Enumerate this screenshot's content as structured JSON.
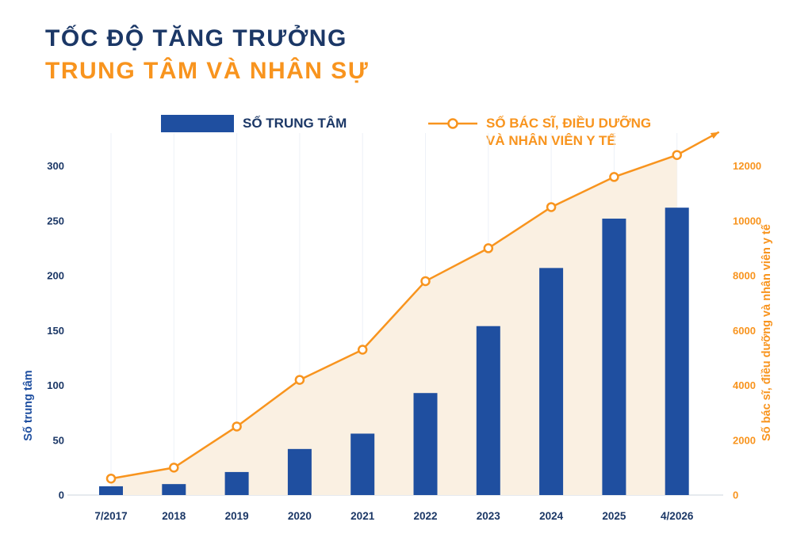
{
  "header": {
    "title_line1": "TỐC ĐỘ TĂNG TRƯỞNG",
    "title_line2": "TRUNG TÂM VÀ NHÂN SỰ"
  },
  "legend": {
    "bars_label": "SỐ TRUNG TÂM",
    "line_label_line1": "SỐ BÁC SĨ, ĐIỀU DƯỠNG",
    "line_label_line2": "VÀ NHÂN VIÊN Y TẾ"
  },
  "chart_data": {
    "type": "bar",
    "subtype": "combo-bar-line-dual-axis",
    "title": "Tốc độ tăng trưởng trung tâm và nhân sự",
    "categories": [
      "7/2017",
      "2018",
      "2019",
      "2020",
      "2021",
      "2022",
      "2023",
      "2024",
      "2025",
      "4/2026"
    ],
    "series": [
      {
        "name": "Số trung tâm",
        "type": "bar",
        "axis": "left",
        "values": [
          8,
          10,
          21,
          42,
          56,
          93,
          154,
          207,
          252,
          262
        ]
      },
      {
        "name": "Số bác sĩ, điều dưỡng và nhân viên y tế",
        "type": "line",
        "axis": "right",
        "area_fill": true,
        "values": [
          600,
          1000,
          2500,
          4200,
          5300,
          7800,
          9000,
          10500,
          11600,
          12400
        ]
      }
    ],
    "left_axis": {
      "title": "Số trung tâm",
      "ticks": [
        0,
        50,
        100,
        150,
        200,
        250,
        300
      ],
      "max": 330
    },
    "right_axis": {
      "title": "Số bác sĩ, điều dưỡng và nhân viên y tế",
      "ticks": [
        0,
        2000,
        4000,
        6000,
        8000,
        10000,
        12000
      ],
      "max": 13200
    },
    "legend_position": "top",
    "grid": "vertical-light",
    "annotations": [
      "orange trend arrow continuing up-right after last point"
    ],
    "colors": {
      "navy": "#1b3766",
      "bar": "#1f4fa0",
      "line": "#f8941e",
      "area": "#faf0e2",
      "grid": "#edf1f7",
      "baseline": "#ccd4de"
    }
  }
}
